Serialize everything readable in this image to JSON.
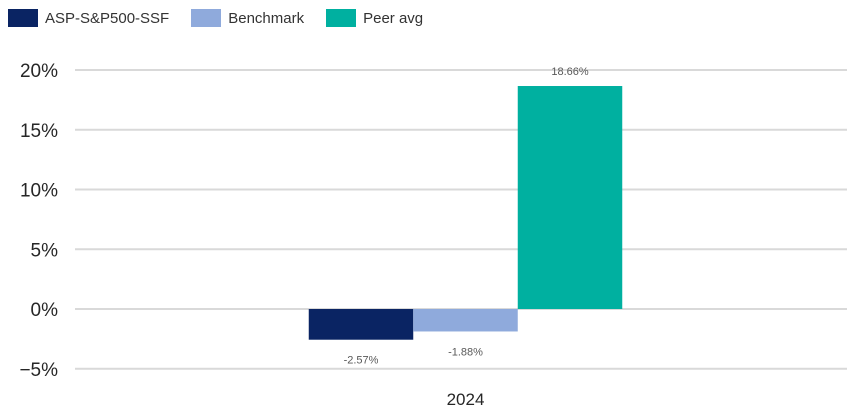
{
  "chart_data": {
    "type": "bar",
    "categories": [
      "2024"
    ],
    "series": [
      {
        "name": "ASP-S&P500-SSF",
        "values": [
          -2.57
        ],
        "color": "#0a2463",
        "label": "-2.57%"
      },
      {
        "name": "Benchmark",
        "values": [
          -1.88
        ],
        "color": "#8faadc",
        "label": "-1.88%"
      },
      {
        "name": "Peer avg",
        "values": [
          18.66
        ],
        "color": "#00b0a0",
        "label": "18.66%"
      }
    ],
    "title": "",
    "xlabel": "",
    "ylabel": "",
    "ylim": [
      -5,
      20
    ],
    "yticks": [
      20,
      15,
      10,
      5,
      0,
      -5
    ],
    "ytick_labels": [
      "20%",
      "15%",
      "10%",
      "5%",
      "0%",
      "−5%"
    ],
    "grid": true,
    "legend_position": "top-left"
  }
}
